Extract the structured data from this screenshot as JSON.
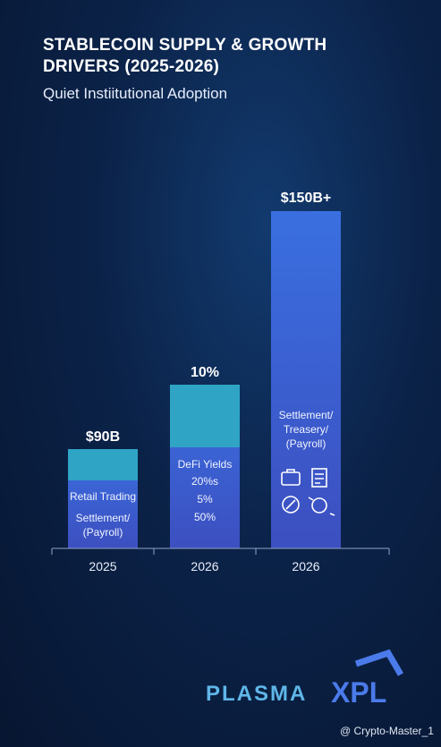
{
  "header": {
    "title": [
      "STABLECOIN SUPPLY & GROWTH",
      "DRIVERS (2025-2026)"
    ],
    "subtitle": "Quiet Instiitutional Adoption"
  },
  "bars": [
    {
      "value_label": "$90B",
      "year": "2025",
      "texts": [
        "Retail Trading",
        "Settlement/",
        "(Payroll)"
      ]
    },
    {
      "value_label": "10%",
      "year": "2026",
      "texts": [
        "DeFi Yields",
        "20%s",
        "5%",
        "50%"
      ]
    },
    {
      "value_label": "$150B+",
      "year": "2026",
      "texts": [
        "Settlement/",
        "Treasery/",
        "(Payroll)"
      ]
    }
  ],
  "logo": {
    "left": "PLASMA",
    "right": "XPL"
  },
  "watermark": "@ Crypto-Master_1"
}
